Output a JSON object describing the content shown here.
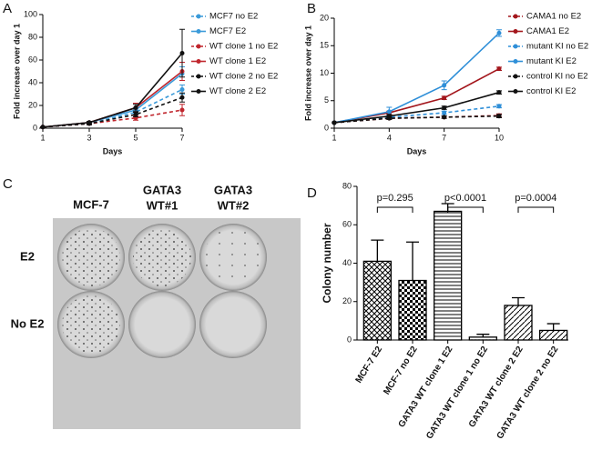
{
  "panels": [
    "A",
    "B",
    "C",
    "D"
  ],
  "chart_data": [
    {
      "type": "line",
      "ylabel": "Fold increase over day 1",
      "xlabel": "Days",
      "x": [
        1,
        3,
        5,
        7
      ],
      "xlim": [
        1,
        7
      ],
      "xticks": [
        1,
        3,
        5,
        7
      ],
      "ylim": [
        0,
        100
      ],
      "yticks": [
        0,
        20,
        40,
        60,
        80,
        100
      ],
      "series": [
        {
          "name": "MCF7 no E2",
          "color": "#3a9ad9",
          "dash": true,
          "values": [
            1,
            4,
            14,
            34
          ],
          "errors": [
            0,
            1,
            2,
            4
          ]
        },
        {
          "name": "MCF7 E2",
          "color": "#3a9ad9",
          "dash": false,
          "values": [
            1,
            5,
            16,
            48
          ],
          "errors": [
            0,
            1,
            2,
            6
          ]
        },
        {
          "name": "WT clone 1 no E2",
          "color": "#c0262d",
          "dash": true,
          "values": [
            1,
            4,
            9,
            16
          ],
          "errors": [
            0,
            1,
            2,
            5
          ]
        },
        {
          "name": "WT clone 1 E2",
          "color": "#c0262d",
          "dash": false,
          "values": [
            1,
            5,
            18,
            50
          ],
          "errors": [
            0,
            1,
            4,
            8
          ]
        },
        {
          "name": "WT clone 2 no E2",
          "color": "#111111",
          "dash": true,
          "values": [
            1,
            4,
            12,
            27
          ],
          "errors": [
            0,
            1,
            2,
            4
          ]
        },
        {
          "name": "WT clone 2 E2",
          "color": "#111111",
          "dash": false,
          "values": [
            1,
            5,
            18,
            66
          ],
          "errors": [
            0,
            1,
            3,
            21
          ]
        }
      ]
    },
    {
      "type": "line",
      "ylabel": "Fold increase over day 1",
      "xlabel": "Days",
      "x": [
        1,
        4,
        7,
        10
      ],
      "xlim": [
        1,
        10
      ],
      "xticks": [
        1,
        4,
        7,
        10
      ],
      "ylim": [
        0,
        20
      ],
      "yticks": [
        0,
        5,
        10,
        15,
        20
      ],
      "series": [
        {
          "name": "CAMA1 no E2",
          "color": "#a3161c",
          "dash": true,
          "values": [
            1,
            1.8,
            2,
            2.3
          ],
          "errors": [
            0,
            0.2,
            0.2,
            0.3
          ]
        },
        {
          "name": "CAMA1 E2",
          "color": "#a3161c",
          "dash": false,
          "values": [
            1,
            2.8,
            5.5,
            10.8
          ],
          "errors": [
            0,
            0.3,
            0.3,
            0.3
          ]
        },
        {
          "name": "mutant KI no E2",
          "color": "#2f8fd8",
          "dash": true,
          "values": [
            1,
            2,
            2.8,
            4
          ],
          "errors": [
            0,
            0.3,
            0.3,
            0.3
          ]
        },
        {
          "name": "mutant KI E2",
          "color": "#2f8fd8",
          "dash": false,
          "values": [
            1,
            3,
            7.8,
            17.3
          ],
          "errors": [
            0,
            0.8,
            0.8,
            0.6
          ]
        },
        {
          "name": "control KI no E2",
          "color": "#111111",
          "dash": true,
          "values": [
            1,
            1.8,
            2,
            2.2
          ],
          "errors": [
            0,
            0.2,
            0.2,
            0.3
          ]
        },
        {
          "name": "control KI E2",
          "color": "#111111",
          "dash": false,
          "values": [
            1,
            2.2,
            3.7,
            6.5
          ],
          "errors": [
            0,
            0.3,
            0.3,
            0.3
          ]
        }
      ]
    },
    {
      "type": "bar",
      "ylabel": "Colony number",
      "categories": [
        "MCF-7 E2",
        "MCF-7 no E2",
        "GATA3 WT clone 1 E2",
        "GATA3 WT clone 1 no E2",
        "GATA3 WT clone 2 E2",
        "GATA3 WT clone 2 no E2"
      ],
      "values": [
        41,
        31,
        67,
        1.5,
        18,
        5
      ],
      "errors": [
        11,
        20,
        4,
        1.5,
        4,
        3.5
      ],
      "patterns": [
        "crosshatch",
        "checker",
        "hlines",
        "dots",
        "diag",
        "diag"
      ],
      "ylim": [
        0,
        80
      ],
      "yticks": [
        0,
        20,
        40,
        60,
        80
      ],
      "annotations": [
        "p=0.295",
        "p<0.0001",
        "p=0.0004"
      ]
    }
  ],
  "plate_photo": {
    "columns": [
      [
        "MCF-7"
      ],
      [
        "GATA3",
        "WT#1"
      ],
      [
        "GATA3",
        "WT#2"
      ]
    ],
    "rows": [
      "E2",
      "No E2"
    ]
  }
}
